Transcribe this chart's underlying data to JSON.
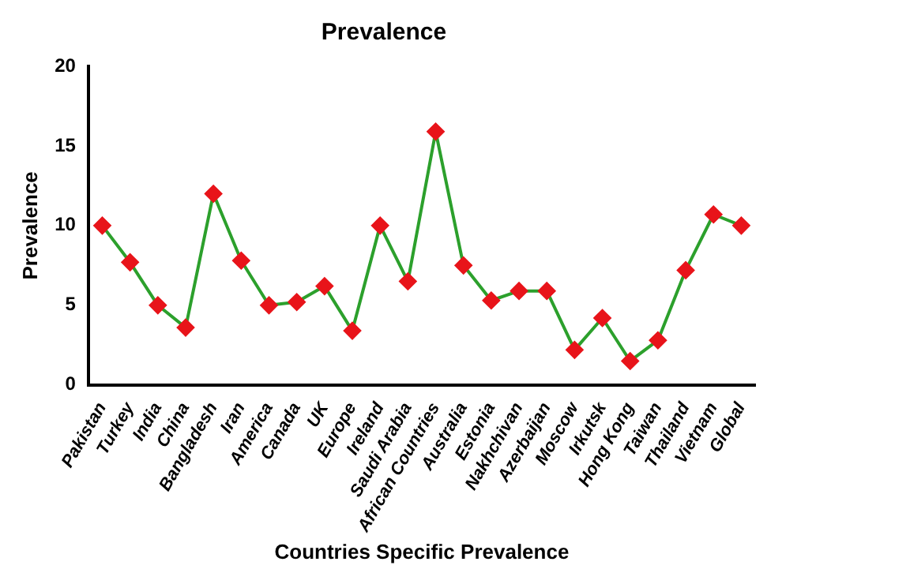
{
  "chart_data": {
    "type": "line",
    "title": "Prevalence",
    "xlabel": "Countries Specific Prevalence",
    "ylabel": "Prevalence",
    "categories": [
      "Pakistan",
      "Turkey",
      "India",
      "China",
      "Bangladesh",
      "Iran",
      "America",
      "Canada",
      "UK",
      "Europe",
      "Ireland",
      "Saudi Arabia",
      "African Countries",
      "Australia",
      "Estonia",
      "Nakhchivan",
      "Azerbaijan",
      "Moscow",
      "Irkutsk",
      "Hong Kong",
      "Taiwan",
      "Thailand",
      "Vietnam",
      "Global"
    ],
    "series": [
      {
        "color": "#2ca02c",
        "values": [
          10,
          7.7,
          5,
          3.6,
          12,
          7.8,
          5,
          5.2,
          6.2,
          3.4,
          10,
          6.5,
          15.9,
          7.5,
          5.3,
          5.9,
          5.9,
          2.2,
          4.2,
          1.5,
          2.8,
          7.2,
          10.7,
          10
        ]
      }
    ],
    "marker": "diamond",
    "ylim": [
      0,
      20
    ],
    "yticks": [
      0,
      5,
      10,
      15,
      20
    ],
    "grid": false,
    "legend": false
  }
}
